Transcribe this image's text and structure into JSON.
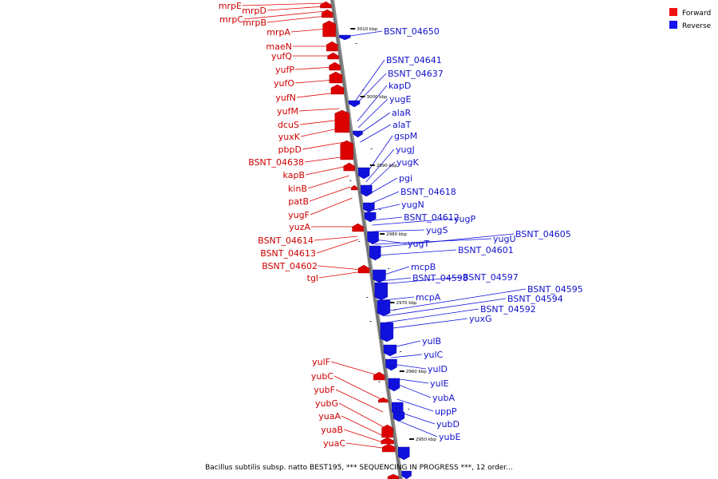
{
  "legend": {
    "forward_label": "Forward",
    "reverse_label": "Reverse",
    "forward_color": "#ee1111",
    "reverse_color": "#1515ee"
  },
  "caption": "Bacillus subtilis subsp. natto BEST195, *** SEQUENCING IN PROGRESS ***, 12 order...",
  "scale_labels": [
    "3010 kbp",
    "3000 kbp",
    "2990 kbp",
    "2980 kbp",
    "2970 kbp",
    "2960 kbp",
    "2950 kbp"
  ],
  "forward_genes": [
    "mrpE",
    "mrpD",
    "mrpC",
    "mrpB",
    "mrpA",
    "maeN",
    "yufQ",
    "yufP",
    "yufO",
    "yufN",
    "yufM",
    "dcuS",
    "yuxK",
    "pbpD",
    "BSNT_04638",
    "kapB",
    "kinB",
    "patB",
    "yugF",
    "yuzA",
    "BSNT_04614",
    "BSNT_04613",
    "BSNT_04602",
    "tgl",
    "yulF",
    "yubC",
    "yubF",
    "yubG",
    "yuaA",
    "yuaB",
    "yuaC"
  ],
  "reverse_genes": [
    "BSNT_04650",
    "BSNT_04641",
    "BSNT_04637",
    "kapD",
    "yugE",
    "alaR",
    "alaT",
    "gspM",
    "yugJ",
    "yugK",
    "pgi",
    "BSNT_04618",
    "yugN",
    "BSNT_04612",
    "yugP",
    "yugS",
    "yugT",
    "yugU",
    "BSNT_04605",
    "BSNT_04601",
    "mcpB",
    "BSNT_04598",
    "BSNT_04597",
    "mcpA",
    "BSNT_04595",
    "BSNT_04594",
    "BSNT_04592",
    "yuxG",
    "yulB",
    "yulC",
    "yulD",
    "yulE",
    "yubA",
    "uppP",
    "yubD",
    "yubE"
  ]
}
